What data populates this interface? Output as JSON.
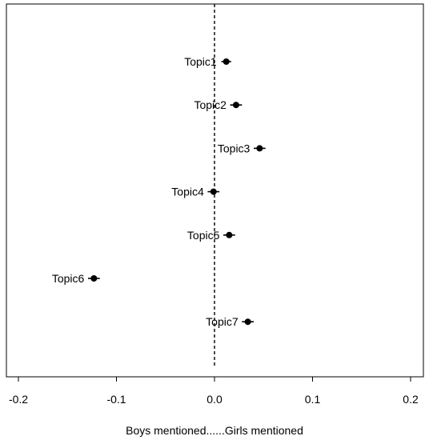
{
  "chart_data": {
    "type": "scatter",
    "title": "",
    "xlabel": "Boys mentioned......Girls mentioned",
    "ylabel": "",
    "xlim": [
      -0.21,
      0.21
    ],
    "x_ticks": [
      -0.2,
      -0.1,
      0.0,
      0.1,
      0.2
    ],
    "x_tick_labels": [
      "-0.2",
      "-0.1",
      "0.0",
      "0.1",
      "0.2"
    ],
    "reference_line": {
      "x": 0.0,
      "style": "dashed"
    },
    "grid": false,
    "legend": "none",
    "points": [
      {
        "label": "Topic1",
        "x": 0.012,
        "err": 0.005
      },
      {
        "label": "Topic2",
        "x": 0.022,
        "err": 0.006
      },
      {
        "label": "Topic3",
        "x": 0.046,
        "err": 0.006
      },
      {
        "label": "Topic4",
        "x": -0.001,
        "err": 0.006
      },
      {
        "label": "Topic5",
        "x": 0.015,
        "err": 0.006
      },
      {
        "label": "Topic6",
        "x": -0.123,
        "err": 0.006
      },
      {
        "label": "Topic7",
        "x": 0.034,
        "err": 0.006
      }
    ],
    "colors": {
      "marker": "#000000",
      "axis": "#000000"
    }
  }
}
